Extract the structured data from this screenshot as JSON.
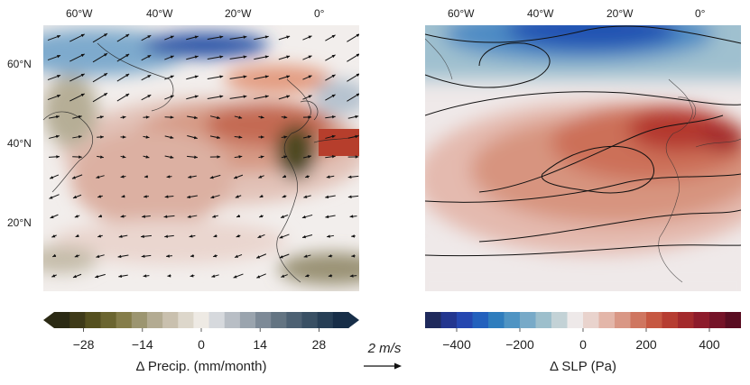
{
  "left_panel": {
    "lon_ticks": [
      "60°W",
      "40°W",
      "20°W",
      "0°"
    ],
    "lat_ticks": [
      "60°N",
      "40°N",
      "20°N"
    ]
  },
  "right_panel": {
    "lon_ticks": [
      "60°W",
      "40°W",
      "20°W",
      "0°"
    ]
  },
  "colorbars": {
    "precip": {
      "title": "Δ Precip. (mm/month)",
      "ticks": [
        "−28",
        "−14",
        "0",
        "14",
        "28"
      ],
      "tick_values": [
        -28,
        -14,
        0,
        14,
        28
      ],
      "range": [
        -35,
        35
      ],
      "colors": [
        "#2b2a14",
        "#3e3a18",
        "#55501f",
        "#6b6530",
        "#857d4a",
        "#9c9570",
        "#b3ab92",
        "#c9c0ae",
        "#ddd7cb",
        "#eeeae4",
        "#d6d9dd",
        "#b8bec5",
        "#9aa4ae",
        "#7d8a97",
        "#637482",
        "#4d6173",
        "#395064",
        "#273f56",
        "#172e48"
      ]
    },
    "slp": {
      "title": "Δ SLP (Pa)",
      "ticks": [
        "−400",
        "−200",
        "0",
        "200",
        "400"
      ],
      "tick_values": [
        -400,
        -200,
        0,
        200,
        400
      ],
      "range": [
        -500,
        500
      ],
      "colors": [
        "#1f2a5c",
        "#23368f",
        "#2547b0",
        "#2361bd",
        "#2f7dbd",
        "#4f94c3",
        "#78aac8",
        "#9dbfcc",
        "#c3d2d6",
        "#eee9e9",
        "#e9d3cd",
        "#e3b6a9",
        "#d99785",
        "#cf7660",
        "#c65842",
        "#b63d31",
        "#a32a2c",
        "#8d1b2b",
        "#751328",
        "#5a0d22"
      ]
    }
  },
  "quiver_key": {
    "label": "2 m/s",
    "value": 2
  },
  "chart_data": [
    {
      "type": "heatmap",
      "panel": "left",
      "variable": "Δ Precip. (mm/month)",
      "overlay": "wind vectors",
      "lon_range": [
        -75,
        10
      ],
      "lat_range": [
        2,
        70
      ],
      "xticks": [
        "60°W",
        "40°W",
        "20°W",
        "0°"
      ],
      "yticks": [
        "60°N",
        "40°N",
        "20°N"
      ],
      "features": [
        {
          "region": "subtropical North Atlantic band",
          "value_range": [
            -20,
            -8
          ]
        },
        {
          "region": "Labrador Sea / Greenland",
          "value_range": [
            14,
            28
          ]
        },
        {
          "region": "northwest Africa / Iberia coast",
          "value_range": [
            -35,
            -21
          ]
        },
        {
          "region": "tropical Atlantic",
          "value_range": [
            -4,
            4
          ]
        }
      ]
    },
    {
      "type": "heatmap",
      "panel": "right",
      "variable": "Δ SLP (Pa)",
      "overlay": "contour lines",
      "lon_range": [
        -75,
        10
      ],
      "lat_range": [
        2,
        70
      ],
      "xticks": [
        "60°W",
        "40°W",
        "20°W",
        "0°"
      ],
      "features": [
        {
          "region": "Iceland / Irminger Sea",
          "value_range": [
            -450,
            -250
          ]
        },
        {
          "region": "mid-latitude North Atlantic / western Europe",
          "value_range": [
            250,
            400
          ]
        },
        {
          "region": "subtropical Atlantic",
          "value_range": [
            50,
            200
          ]
        },
        {
          "region": "tropical Atlantic",
          "value_range": [
            0,
            50
          ]
        }
      ]
    }
  ]
}
